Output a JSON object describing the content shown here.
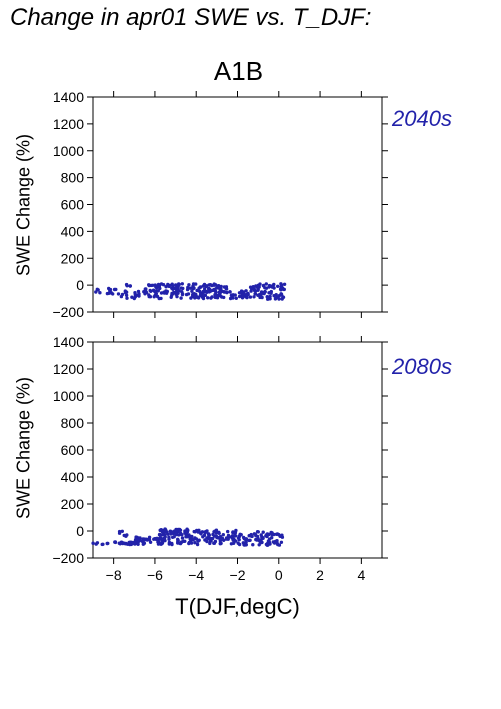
{
  "page": {
    "title": "Change in apr01 SWE vs. T_DJF:",
    "scenario": "A1B"
  },
  "colors": {
    "points": "#2222aa",
    "period_label": "#2222aa",
    "axes": "#000000"
  },
  "chart_data": [
    {
      "type": "scatter",
      "title": "2040s",
      "xlabel": "T(DJF,degC)",
      "ylabel": "SWE Change (%)",
      "xlim": [
        -9,
        5
      ],
      "ylim": [
        -200,
        1400
      ],
      "xticks": [
        -8,
        -6,
        -4,
        -2,
        0,
        2,
        4
      ],
      "yticks": [
        -200,
        0,
        200,
        400,
        600,
        800,
        1000,
        1200,
        1400
      ],
      "show_xtick_labels": false,
      "clusters": [
        {
          "x_range": [
            -9.0,
            -7.8
          ],
          "y_range": [
            -75,
            -25
          ],
          "n": 14
        },
        {
          "x_range": [
            -8.0,
            -6.5
          ],
          "y_range": [
            -100,
            10
          ],
          "n": 22
        },
        {
          "x_range": [
            -6.5,
            -4.2
          ],
          "y_range": [
            -100,
            10
          ],
          "n": 90
        },
        {
          "x_range": [
            -4.2,
            -2.5
          ],
          "y_range": [
            -100,
            10
          ],
          "n": 90
        },
        {
          "x_range": [
            -2.5,
            -1.5
          ],
          "y_range": [
            -100,
            -40
          ],
          "n": 25
        },
        {
          "x_range": [
            -1.5,
            0.3
          ],
          "y_range": [
            -105,
            10
          ],
          "n": 80
        }
      ]
    },
    {
      "type": "scatter",
      "title": "2080s",
      "xlabel": "T(DJF,degC)",
      "ylabel": "SWE Change (%)",
      "xlim": [
        -9,
        5
      ],
      "ylim": [
        -200,
        1400
      ],
      "xticks": [
        -8,
        -6,
        -4,
        -2,
        0,
        2,
        4
      ],
      "yticks": [
        -200,
        0,
        200,
        400,
        600,
        800,
        1000,
        1200,
        1400
      ],
      "show_xtick_labels": true,
      "clusters": [
        {
          "x_range": [
            -9.0,
            -7.0
          ],
          "y_range": [
            -100,
            -80
          ],
          "n": 30
        },
        {
          "x_range": [
            -7.8,
            -7.0
          ],
          "y_range": [
            -40,
            5
          ],
          "n": 6
        },
        {
          "x_range": [
            -7.0,
            -4.5
          ],
          "y_range": [
            -100,
            -40
          ],
          "n": 70
        },
        {
          "x_range": [
            -5.8,
            -4.4
          ],
          "y_range": [
            -30,
            15
          ],
          "n": 50
        },
        {
          "x_range": [
            -4.5,
            -2.0
          ],
          "y_range": [
            -100,
            10
          ],
          "n": 100
        },
        {
          "x_range": [
            -2.0,
            0.3
          ],
          "y_range": [
            -105,
            -20
          ],
          "n": 70
        },
        {
          "x_range": [
            -1.3,
            -0.3
          ],
          "y_range": [
            -40,
            -5
          ],
          "n": 15
        }
      ]
    }
  ]
}
